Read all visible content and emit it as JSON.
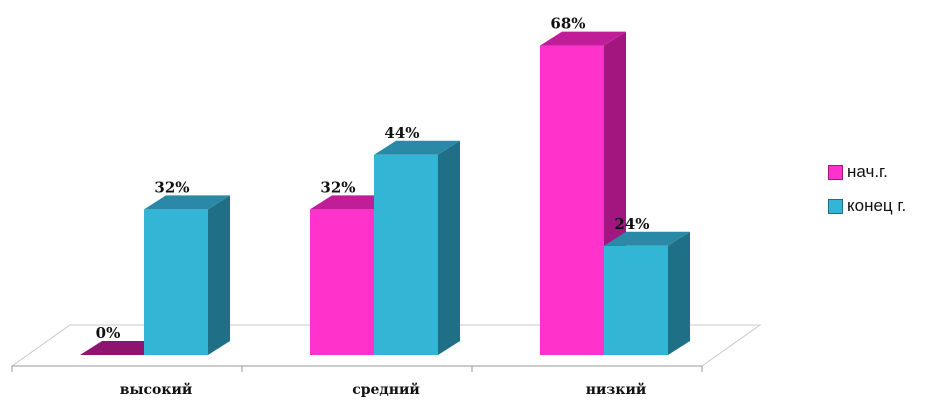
{
  "chart_data": {
    "type": "bar",
    "categories": [
      "высокий",
      "средний",
      "низкий"
    ],
    "series": [
      {
        "name": "нач.г.",
        "values": [
          0,
          32,
          68
        ],
        "labels": [
          "0%",
          "32%",
          "68%"
        ],
        "color": "#ff33cc"
      },
      {
        "name": "конец г.",
        "values": [
          32,
          44,
          24
        ],
        "labels": [
          "32%",
          "44%",
          "24%"
        ],
        "color": "#33b5d6"
      }
    ],
    "ylim": [
      0,
      70
    ],
    "legend": "right",
    "grid": false
  }
}
